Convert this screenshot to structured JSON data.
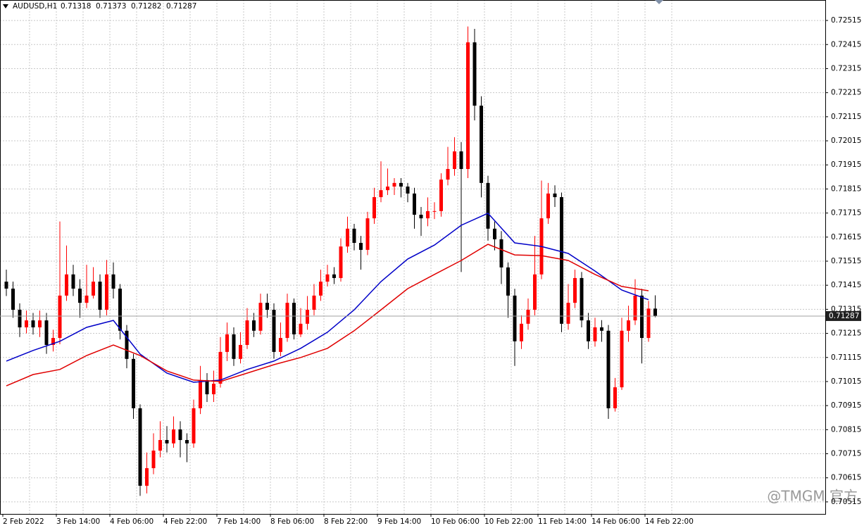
{
  "chart_data": {
    "type": "candlestick",
    "symbol": "AUDUSD,H1",
    "x_labels": [
      "2 Feb 2022",
      "3 Feb 14:00",
      "4 Feb 06:00",
      "4 Feb 22:00",
      "7 Feb 14:00",
      "8 Feb 06:00",
      "8 Feb 22:00",
      "9 Feb 14:00",
      "10 Feb 06:00",
      "10 Feb 22:00",
      "11 Feb 14:00",
      "14 Feb 06:00",
      "14 Feb 22:00"
    ],
    "candles": {
      "up_color": "#ff0000",
      "down_color": "#000000",
      "open": [
        0.7143,
        0.71401,
        0.71313,
        0.7124,
        0.71269,
        0.7124,
        0.71269,
        0.71167,
        0.71196,
        0.71372,
        0.7146,
        0.71401,
        0.71342,
        0.71372,
        0.7143,
        0.71313,
        0.7146,
        0.71401,
        0.71226,
        0.71109,
        0.70904,
        0.70582,
        0.70655,
        0.70728,
        0.70772,
        0.70758,
        0.70816,
        0.70772,
        0.70758,
        0.70904,
        0.71021,
        0.70962,
        0.71006,
        0.71138,
        0.71211,
        0.71109,
        0.71167,
        0.71269,
        0.71226,
        0.71342,
        0.71313,
        0.71138,
        0.71196,
        0.71342,
        0.71211,
        0.71255,
        0.71313,
        0.71372,
        0.7143,
        0.7146,
        0.71445,
        0.71576,
        0.7165,
        0.71591,
        0.71562,
        0.71693,
        0.71781,
        0.7181,
        0.71825,
        0.7184,
        0.71825,
        0.71796,
        0.71708,
        0.71693,
        0.71723,
        0.71723,
        0.71854,
        0.71898,
        0.71971,
        0.71898,
        0.72424,
        0.72161,
        0.7184,
        0.7165,
        0.71606,
        0.71489,
        0.71372,
        0.71182,
        0.71255,
        0.71313,
        0.7146,
        0.71693,
        0.71796,
        0.71781,
        0.71255,
        0.71342,
        0.71445,
        0.71269,
        0.71182,
        0.7124,
        0.71226,
        0.70904,
        0.70991,
        0.71226,
        0.71269,
        0.71372,
        0.71196,
        0.71318
      ],
      "high": [
        0.7148,
        0.7143,
        0.7134,
        0.7131,
        0.713,
        0.7131,
        0.713,
        0.7123,
        0.7168,
        0.7158,
        0.715,
        0.7144,
        0.715,
        0.7149,
        0.7146,
        0.7152,
        0.7151,
        0.7142,
        0.7125,
        0.7113,
        0.7092,
        0.7072,
        0.708,
        0.7085,
        0.7083,
        0.7087,
        0.7085,
        0.708,
        0.7094,
        0.7108,
        0.7105,
        0.7106,
        0.712,
        0.7126,
        0.7124,
        0.7122,
        0.7132,
        0.713,
        0.7138,
        0.7138,
        0.7134,
        0.7126,
        0.7138,
        0.7136,
        0.7132,
        0.7137,
        0.7142,
        0.7148,
        0.715,
        0.7149,
        0.7161,
        0.717,
        0.7167,
        0.7162,
        0.7172,
        0.7182,
        0.7193,
        0.719,
        0.7186,
        0.7186,
        0.7184,
        0.7182,
        0.7174,
        0.7178,
        0.7176,
        0.7188,
        0.7199,
        0.7203,
        0.7201,
        0.7249,
        0.7248,
        0.722,
        0.7187,
        0.7168,
        0.7164,
        0.7151,
        0.714,
        0.7129,
        0.7136,
        0.7162,
        0.7185,
        0.7184,
        0.7183,
        0.718,
        0.7142,
        0.7148,
        0.7147,
        0.713,
        0.7128,
        0.7127,
        0.7125,
        0.7103,
        0.7128,
        0.7133,
        0.7144,
        0.714,
        0.7135,
        0.71373
      ],
      "low": [
        0.7137,
        0.7128,
        0.712,
        0.71215,
        0.7121,
        0.712,
        0.7113,
        0.7114,
        0.7117,
        0.7135,
        0.7137,
        0.7128,
        0.7132,
        0.7136,
        0.7128,
        0.7129,
        0.7136,
        0.7119,
        0.7107,
        0.7086,
        0.7054,
        0.7055,
        0.7063,
        0.707,
        0.7072,
        0.7074,
        0.707,
        0.7068,
        0.7074,
        0.7088,
        0.7093,
        0.7093,
        0.7099,
        0.711,
        0.7108,
        0.7109,
        0.7115,
        0.712,
        0.7121,
        0.7128,
        0.7111,
        0.7112,
        0.7118,
        0.7119,
        0.712,
        0.7123,
        0.7129,
        0.7135,
        0.7141,
        0.7142,
        0.7143,
        0.7155,
        0.7156,
        0.7148,
        0.7154,
        0.7167,
        0.7176,
        0.7179,
        0.7179,
        0.7178,
        0.7176,
        0.7165,
        0.7162,
        0.7166,
        0.7169,
        0.717,
        0.7183,
        0.7187,
        0.7147,
        0.7186,
        0.721,
        0.7178,
        0.716,
        0.7156,
        0.7142,
        0.7128,
        0.7108,
        0.7115,
        0.7123,
        0.7129,
        0.7144,
        0.7167,
        0.7174,
        0.7122,
        0.7123,
        0.7132,
        0.7124,
        0.7115,
        0.7116,
        0.7118,
        0.7086,
        0.7089,
        0.7098,
        0.7118,
        0.7125,
        0.7109,
        0.7118,
        0.71282
      ],
      "close": [
        0.71401,
        0.71313,
        0.7124,
        0.71269,
        0.7124,
        0.71269,
        0.71167,
        0.71196,
        0.71372,
        0.7146,
        0.71401,
        0.71342,
        0.71372,
        0.7143,
        0.71313,
        0.7146,
        0.71401,
        0.71226,
        0.71109,
        0.70904,
        0.70582,
        0.70655,
        0.70728,
        0.70772,
        0.70758,
        0.70816,
        0.70772,
        0.70758,
        0.70904,
        0.71021,
        0.70962,
        0.71006,
        0.71138,
        0.71211,
        0.71109,
        0.71167,
        0.71269,
        0.71226,
        0.71342,
        0.71313,
        0.71138,
        0.71196,
        0.71342,
        0.71211,
        0.71255,
        0.71313,
        0.71372,
        0.7143,
        0.7146,
        0.71445,
        0.71576,
        0.7165,
        0.71591,
        0.71562,
        0.71693,
        0.71781,
        0.7181,
        0.71825,
        0.7184,
        0.71825,
        0.71796,
        0.71708,
        0.71693,
        0.71723,
        0.71723,
        0.71854,
        0.71898,
        0.71971,
        0.71898,
        0.72424,
        0.72161,
        0.7184,
        0.7165,
        0.71606,
        0.71489,
        0.71372,
        0.71182,
        0.71255,
        0.71313,
        0.7146,
        0.71693,
        0.71796,
        0.71781,
        0.71255,
        0.71342,
        0.71445,
        0.71269,
        0.71182,
        0.7124,
        0.71226,
        0.70904,
        0.70991,
        0.71226,
        0.71269,
        0.71372,
        0.71196,
        0.71318,
        0.71287
      ]
    },
    "lines": [
      {
        "color": "#0000c8",
        "values": [
          0.711,
          0.71144,
          0.71182,
          0.7124,
          0.71269,
          0.71129,
          0.7105,
          0.71012,
          0.71021,
          0.71065,
          0.711,
          0.71153,
          0.7122,
          0.71313,
          0.7143,
          0.71524,
          0.71582,
          0.71664,
          0.71714,
          0.71591,
          0.71576,
          0.71547,
          0.71474,
          0.71395,
          0.71355
        ]
      },
      {
        "color": "#e00000",
        "values": [
          0.70997,
          0.71044,
          0.71065,
          0.71123,
          0.71167,
          0.71123,
          0.71059,
          0.71021,
          0.71015,
          0.7105,
          0.71085,
          0.71115,
          0.71153,
          0.71226,
          0.71313,
          0.71401,
          0.7146,
          0.71518,
          0.71585,
          0.71541,
          0.71538,
          0.71518,
          0.7146,
          0.7141,
          0.71392
        ]
      }
    ],
    "ylim": [
      0.70465,
      0.726
    ],
    "yticks": [
      0.72515,
      0.72415,
      0.72315,
      0.72215,
      0.72115,
      0.72015,
      0.71915,
      0.71815,
      0.71715,
      0.71615,
      0.71515,
      0.71415,
      0.71315,
      0.71215,
      0.71115,
      0.71015,
      0.70915,
      0.70815,
      0.70715,
      0.70615,
      0.70515
    ],
    "grid": true
  },
  "watermark": "@TMGM 官方"
}
